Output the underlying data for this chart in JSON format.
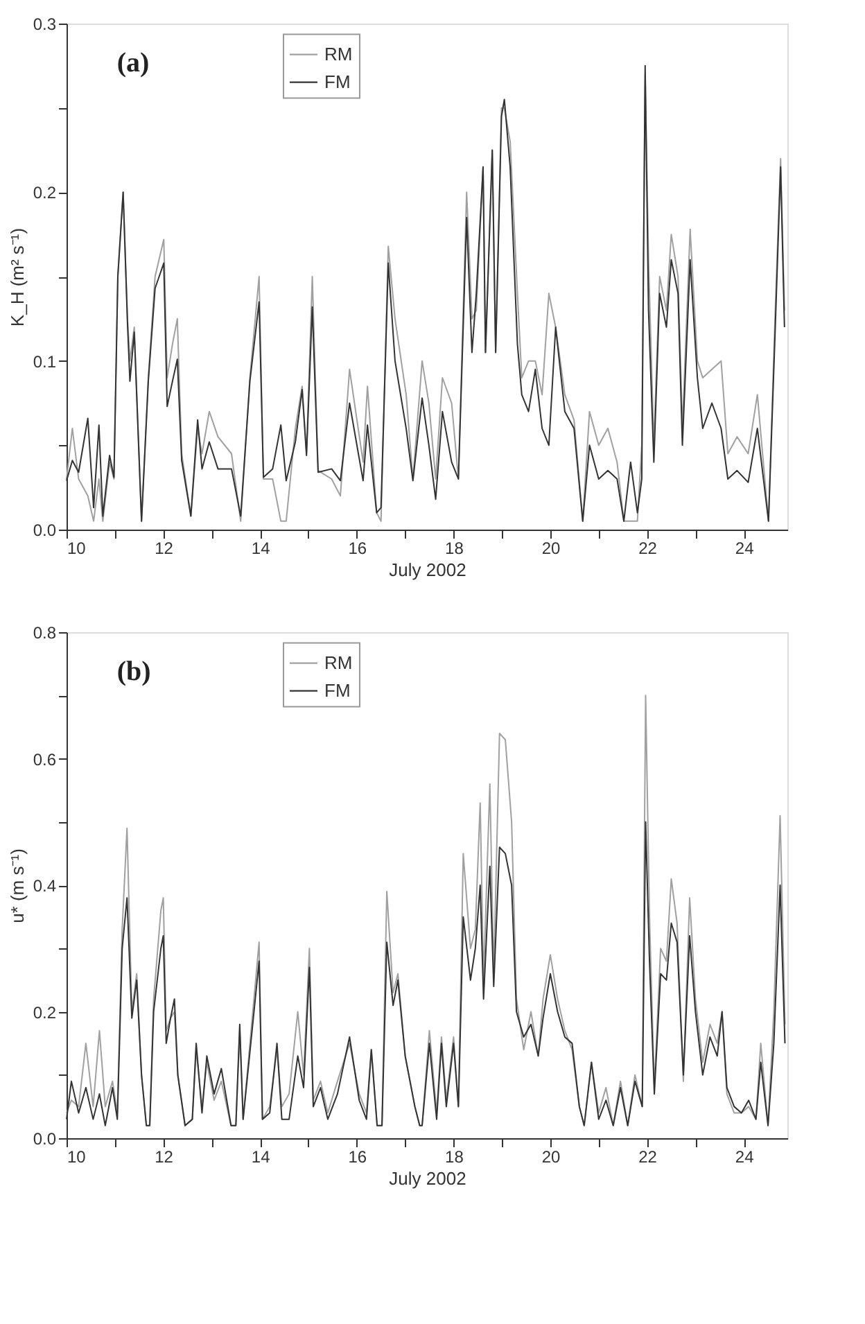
{
  "chart_data": [
    {
      "type": "line",
      "xlabel": "July 2002",
      "ylabel": "K_H (m² s⁻¹)",
      "annotations": [
        "(a)"
      ],
      "legend": "top left",
      "grid": false,
      "marker": "none",
      "line_style": "solid",
      "xlim": [
        10,
        24.9
      ],
      "xticks": [
        10,
        {
          "value": 11,
          "label": null
        },
        12,
        {
          "value": 13,
          "label": null
        },
        14,
        {
          "value": 15,
          "label": null
        },
        16,
        {
          "value": 17,
          "label": null
        },
        18,
        {
          "value": 19,
          "label": null
        },
        20,
        {
          "value": 21,
          "label": null
        },
        22,
        {
          "value": 23,
          "label": null
        },
        24
      ],
      "ylim": [
        0,
        0.3
      ],
      "yticks": [
        {
          "value": 0,
          "label": "0.0"
        },
        {
          "value": 0.05,
          "label": null
        },
        0.1,
        {
          "value": 0.15,
          "label": null
        },
        0.2,
        {
          "value": 0.25,
          "label": null
        },
        0.3
      ],
      "x": [
        10,
        10.12,
        10.25,
        10.44,
        10.56,
        10.67,
        10.75,
        10.89,
        10.98,
        11.06,
        11.17,
        11.26,
        11.31,
        11.4,
        11.55,
        11.69,
        11.83,
        12.01,
        12.08,
        12.19,
        12.29,
        12.38,
        12.57,
        12.71,
        12.8,
        12.95,
        13.13,
        13.41,
        13.6,
        13.79,
        13.98,
        14.07,
        14.26,
        14.43,
        14.54,
        14.73,
        14.87,
        14.96,
        15.08,
        15.2,
        15.48,
        15.66,
        15.85,
        16.13,
        16.22,
        16.41,
        16.5,
        16.65,
        16.79,
        17.02,
        17.16,
        17.35,
        17.49,
        17.63,
        17.77,
        17.96,
        18.1,
        18.27,
        18.38,
        18.47,
        18.61,
        18.66,
        18.8,
        18.87,
        18.99,
        19.05,
        19.17,
        19.32,
        19.41,
        19.55,
        19.69,
        19.83,
        19.97,
        20.11,
        20.3,
        20.49,
        20.67,
        20.81,
        21.0,
        21.19,
        21.38,
        21.52,
        21.66,
        21.8,
        21.89,
        21.96,
        22.03,
        22.14,
        22.26,
        22.4,
        22.5,
        22.64,
        22.73,
        22.89,
        23.04,
        23.15,
        23.34,
        23.53,
        23.67,
        23.86,
        24.09,
        24.28,
        24.51,
        24.65,
        24.76,
        24.84
      ],
      "series": [
        {
          "name": "RM",
          "color": "#a0a0a0",
          "values": [
            0.03,
            0.06,
            0.03,
            0.02,
            0.005,
            0.03,
            0.005,
            0.04,
            0.03,
            0.15,
            0.2,
            0.125,
            0.1,
            0.12,
            0.005,
            0.09,
            0.15,
            0.172,
            0.09,
            0.11,
            0.125,
            0.045,
            0.008,
            0.06,
            0.045,
            0.07,
            0.055,
            0.045,
            0.005,
            0.09,
            0.15,
            0.03,
            0.03,
            0.005,
            0.005,
            0.06,
            0.085,
            0.045,
            0.15,
            0.035,
            0.03,
            0.02,
            0.095,
            0.04,
            0.085,
            0.01,
            0.005,
            0.168,
            0.125,
            0.08,
            0.03,
            0.1,
            0.075,
            0.03,
            0.09,
            0.075,
            0.03,
            0.2,
            0.125,
            0.13,
            0.215,
            0.105,
            0.225,
            0.105,
            0.25,
            0.25,
            0.23,
            0.14,
            0.09,
            0.1,
            0.1,
            0.08,
            0.14,
            0.12,
            0.08,
            0.065,
            0.005,
            0.07,
            0.05,
            0.06,
            0.04,
            0.005,
            0.005,
            0.005,
            0.05,
            0.27,
            0.16,
            0.05,
            0.15,
            0.13,
            0.175,
            0.15,
            0.06,
            0.178,
            0.1,
            0.09,
            0.095,
            0.1,
            0.045,
            0.055,
            0.045,
            0.08,
            0.005,
            0.13,
            0.22,
            0.13
          ]
        },
        {
          "name": "FM",
          "color": "#333333",
          "values": [
            0.029,
            0.041,
            0.034,
            0.066,
            0.013,
            0.062,
            0.008,
            0.044,
            0.031,
            0.15,
            0.2,
            0.122,
            0.088,
            0.117,
            0.005,
            0.088,
            0.143,
            0.158,
            0.073,
            0.088,
            0.101,
            0.041,
            0.008,
            0.065,
            0.036,
            0.052,
            0.036,
            0.036,
            0.008,
            0.088,
            0.135,
            0.031,
            0.036,
            0.062,
            0.029,
            0.052,
            0.083,
            0.044,
            0.132,
            0.034,
            0.036,
            0.029,
            0.075,
            0.029,
            0.062,
            0.01,
            0.013,
            0.158,
            0.1,
            0.06,
            0.029,
            0.078,
            0.05,
            0.018,
            0.07,
            0.04,
            0.03,
            0.185,
            0.105,
            0.14,
            0.215,
            0.105,
            0.225,
            0.105,
            0.245,
            0.255,
            0.215,
            0.11,
            0.08,
            0.07,
            0.095,
            0.06,
            0.05,
            0.12,
            0.07,
            0.06,
            0.005,
            0.05,
            0.03,
            0.035,
            0.03,
            0.005,
            0.04,
            0.01,
            0.03,
            0.275,
            0.13,
            0.04,
            0.14,
            0.12,
            0.16,
            0.14,
            0.05,
            0.16,
            0.09,
            0.06,
            0.075,
            0.06,
            0.03,
            0.035,
            0.028,
            0.06,
            0.005,
            0.12,
            0.215,
            0.12
          ]
        }
      ]
    },
    {
      "type": "line",
      "xlabel": "July 2002",
      "ylabel": "u* (m s⁻¹)",
      "annotations": [
        "(b)"
      ],
      "legend": "top left",
      "grid": false,
      "marker": "none",
      "line_style": "solid",
      "xlim": [
        10,
        24.9
      ],
      "xticks": [
        10,
        {
          "value": 11,
          "label": null
        },
        12,
        {
          "value": 13,
          "label": null
        },
        14,
        {
          "value": 15,
          "label": null
        },
        16,
        {
          "value": 17,
          "label": null
        },
        18,
        {
          "value": 19,
          "label": null
        },
        20,
        {
          "value": 21,
          "label": null
        },
        22,
        {
          "value": 23,
          "label": null
        },
        24
      ],
      "ylim": [
        0,
        0.8
      ],
      "yticks": [
        {
          "value": 0,
          "label": "0.0"
        },
        {
          "value": 0.1,
          "label": null
        },
        0.2,
        {
          "value": 0.3,
          "label": null
        },
        0.4,
        {
          "value": 0.5,
          "label": null
        },
        0.6,
        {
          "value": 0.7,
          "label": null
        },
        0.8
      ],
      "x": [
        10,
        10.1,
        10.25,
        10.4,
        10.55,
        10.68,
        10.8,
        10.95,
        11.05,
        11.15,
        11.25,
        11.35,
        11.45,
        11.55,
        11.65,
        11.72,
        11.8,
        11.95,
        12.0,
        12.06,
        12.15,
        12.23,
        12.3,
        12.45,
        12.6,
        12.68,
        12.8,
        12.9,
        13.05,
        13.2,
        13.4,
        13.5,
        13.58,
        13.65,
        13.98,
        14.05,
        14.2,
        14.35,
        14.45,
        14.6,
        14.78,
        14.9,
        15.02,
        15.1,
        15.25,
        15.4,
        15.6,
        15.85,
        16.05,
        16.2,
        16.3,
        16.42,
        16.52,
        16.62,
        16.75,
        16.85,
        17.0,
        17.2,
        17.3,
        17.35,
        17.5,
        17.65,
        17.75,
        17.85,
        18.0,
        18.1,
        18.2,
        18.35,
        18.45,
        18.55,
        18.62,
        18.75,
        18.83,
        18.95,
        19.07,
        19.2,
        19.3,
        19.45,
        19.6,
        19.75,
        19.85,
        20.0,
        20.15,
        20.3,
        20.45,
        20.6,
        20.7,
        20.85,
        21.0,
        21.15,
        21.3,
        21.45,
        21.6,
        21.75,
        21.9,
        21.97,
        22.05,
        22.15,
        22.28,
        22.4,
        22.5,
        22.62,
        22.75,
        22.88,
        23.0,
        23.15,
        23.3,
        23.45,
        23.55,
        23.65,
        23.8,
        23.95,
        24.1,
        24.25,
        24.35,
        24.5,
        24.62,
        24.75,
        24.85
      ],
      "series": [
        {
          "name": "RM",
          "color": "#a0a0a0",
          "values": [
            0.04,
            0.06,
            0.05,
            0.15,
            0.05,
            0.17,
            0.05,
            0.09,
            0.04,
            0.33,
            0.49,
            0.2,
            0.26,
            0.1,
            0.02,
            0.02,
            0.22,
            0.36,
            0.38,
            0.17,
            0.19,
            0.2,
            0.1,
            0.02,
            0.03,
            0.14,
            0.05,
            0.12,
            0.06,
            0.09,
            0.02,
            0.02,
            0.17,
            0.03,
            0.31,
            0.03,
            0.05,
            0.14,
            0.05,
            0.07,
            0.2,
            0.1,
            0.3,
            0.06,
            0.09,
            0.04,
            0.09,
            0.15,
            0.07,
            0.04,
            0.14,
            0.02,
            0.02,
            0.39,
            0.23,
            0.26,
            0.13,
            0.05,
            0.02,
            0.02,
            0.17,
            0.04,
            0.16,
            0.06,
            0.16,
            0.05,
            0.45,
            0.3,
            0.33,
            0.53,
            0.25,
            0.56,
            0.26,
            0.64,
            0.63,
            0.5,
            0.22,
            0.14,
            0.2,
            0.13,
            0.22,
            0.29,
            0.22,
            0.17,
            0.14,
            0.05,
            0.02,
            0.12,
            0.04,
            0.08,
            0.02,
            0.09,
            0.02,
            0.1,
            0.05,
            0.7,
            0.35,
            0.08,
            0.3,
            0.28,
            0.41,
            0.34,
            0.09,
            0.38,
            0.22,
            0.12,
            0.18,
            0.15,
            0.2,
            0.07,
            0.04,
            0.04,
            0.05,
            0.03,
            0.15,
            0.02,
            0.2,
            0.51,
            0.18
          ]
        },
        {
          "name": "FM",
          "color": "#333333",
          "values": [
            0.03,
            0.09,
            0.04,
            0.08,
            0.03,
            0.07,
            0.02,
            0.08,
            0.03,
            0.3,
            0.38,
            0.19,
            0.25,
            0.1,
            0.02,
            0.02,
            0.2,
            0.3,
            0.32,
            0.15,
            0.19,
            0.22,
            0.1,
            0.02,
            0.03,
            0.15,
            0.04,
            0.13,
            0.07,
            0.11,
            0.02,
            0.02,
            0.18,
            0.03,
            0.28,
            0.03,
            0.04,
            0.15,
            0.03,
            0.03,
            0.13,
            0.08,
            0.27,
            0.05,
            0.08,
            0.03,
            0.07,
            0.16,
            0.06,
            0.03,
            0.14,
            0.02,
            0.02,
            0.31,
            0.21,
            0.25,
            0.13,
            0.05,
            0.02,
            0.02,
            0.15,
            0.03,
            0.15,
            0.05,
            0.15,
            0.05,
            0.35,
            0.25,
            0.3,
            0.4,
            0.22,
            0.43,
            0.24,
            0.46,
            0.45,
            0.4,
            0.2,
            0.16,
            0.18,
            0.13,
            0.19,
            0.26,
            0.2,
            0.16,
            0.15,
            0.05,
            0.02,
            0.12,
            0.03,
            0.06,
            0.02,
            0.08,
            0.02,
            0.09,
            0.05,
            0.5,
            0.28,
            0.07,
            0.26,
            0.25,
            0.34,
            0.31,
            0.1,
            0.32,
            0.2,
            0.1,
            0.16,
            0.13,
            0.2,
            0.08,
            0.05,
            0.04,
            0.06,
            0.03,
            0.12,
            0.02,
            0.15,
            0.4,
            0.15
          ]
        }
      ]
    }
  ]
}
